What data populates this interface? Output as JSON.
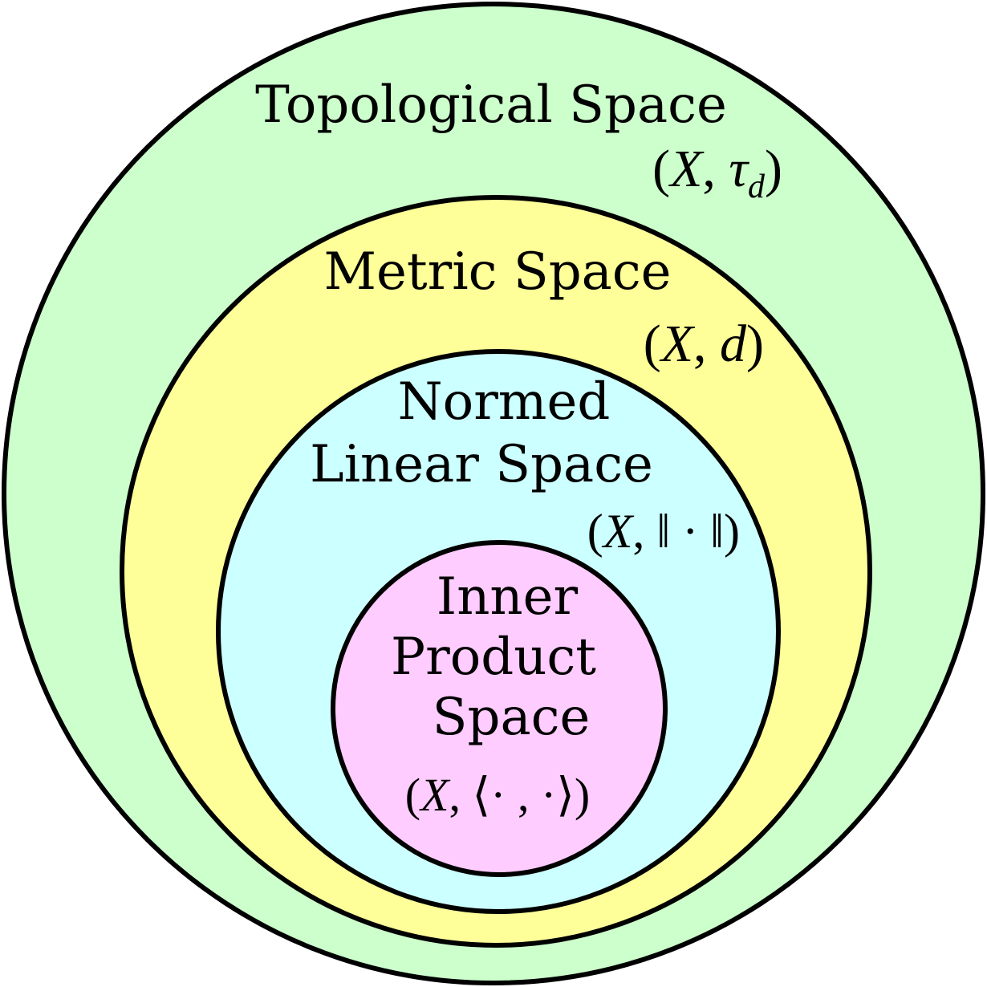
{
  "diagram": {
    "topological": {
      "title": "Topological Space",
      "notation": {
        "open": "(",
        "X": "X",
        "sep": ", ",
        "tau": "τ",
        "sub": "d",
        "close": ")"
      },
      "color": "#ccffcc"
    },
    "metric": {
      "title": "Metric Space",
      "notation": {
        "open": "(",
        "X": "X",
        "sep": ", ",
        "d": "d",
        "close": ")"
      },
      "color": "#ffff99"
    },
    "normed": {
      "title_line1": "Normed",
      "title_line2": "Linear Space",
      "notation": {
        "open": "(",
        "X": "X",
        "rest": ", ‖ · ‖)"
      },
      "color": "#ccffff"
    },
    "inner_product": {
      "title_line1": "Inner",
      "title_line2": "Product",
      "title_line3": "Space",
      "notation": {
        "open": "(",
        "X": "X",
        "rest": ", ⟨· , ·⟩)"
      },
      "color": "#ffccff"
    },
    "border_color": "#000000"
  }
}
